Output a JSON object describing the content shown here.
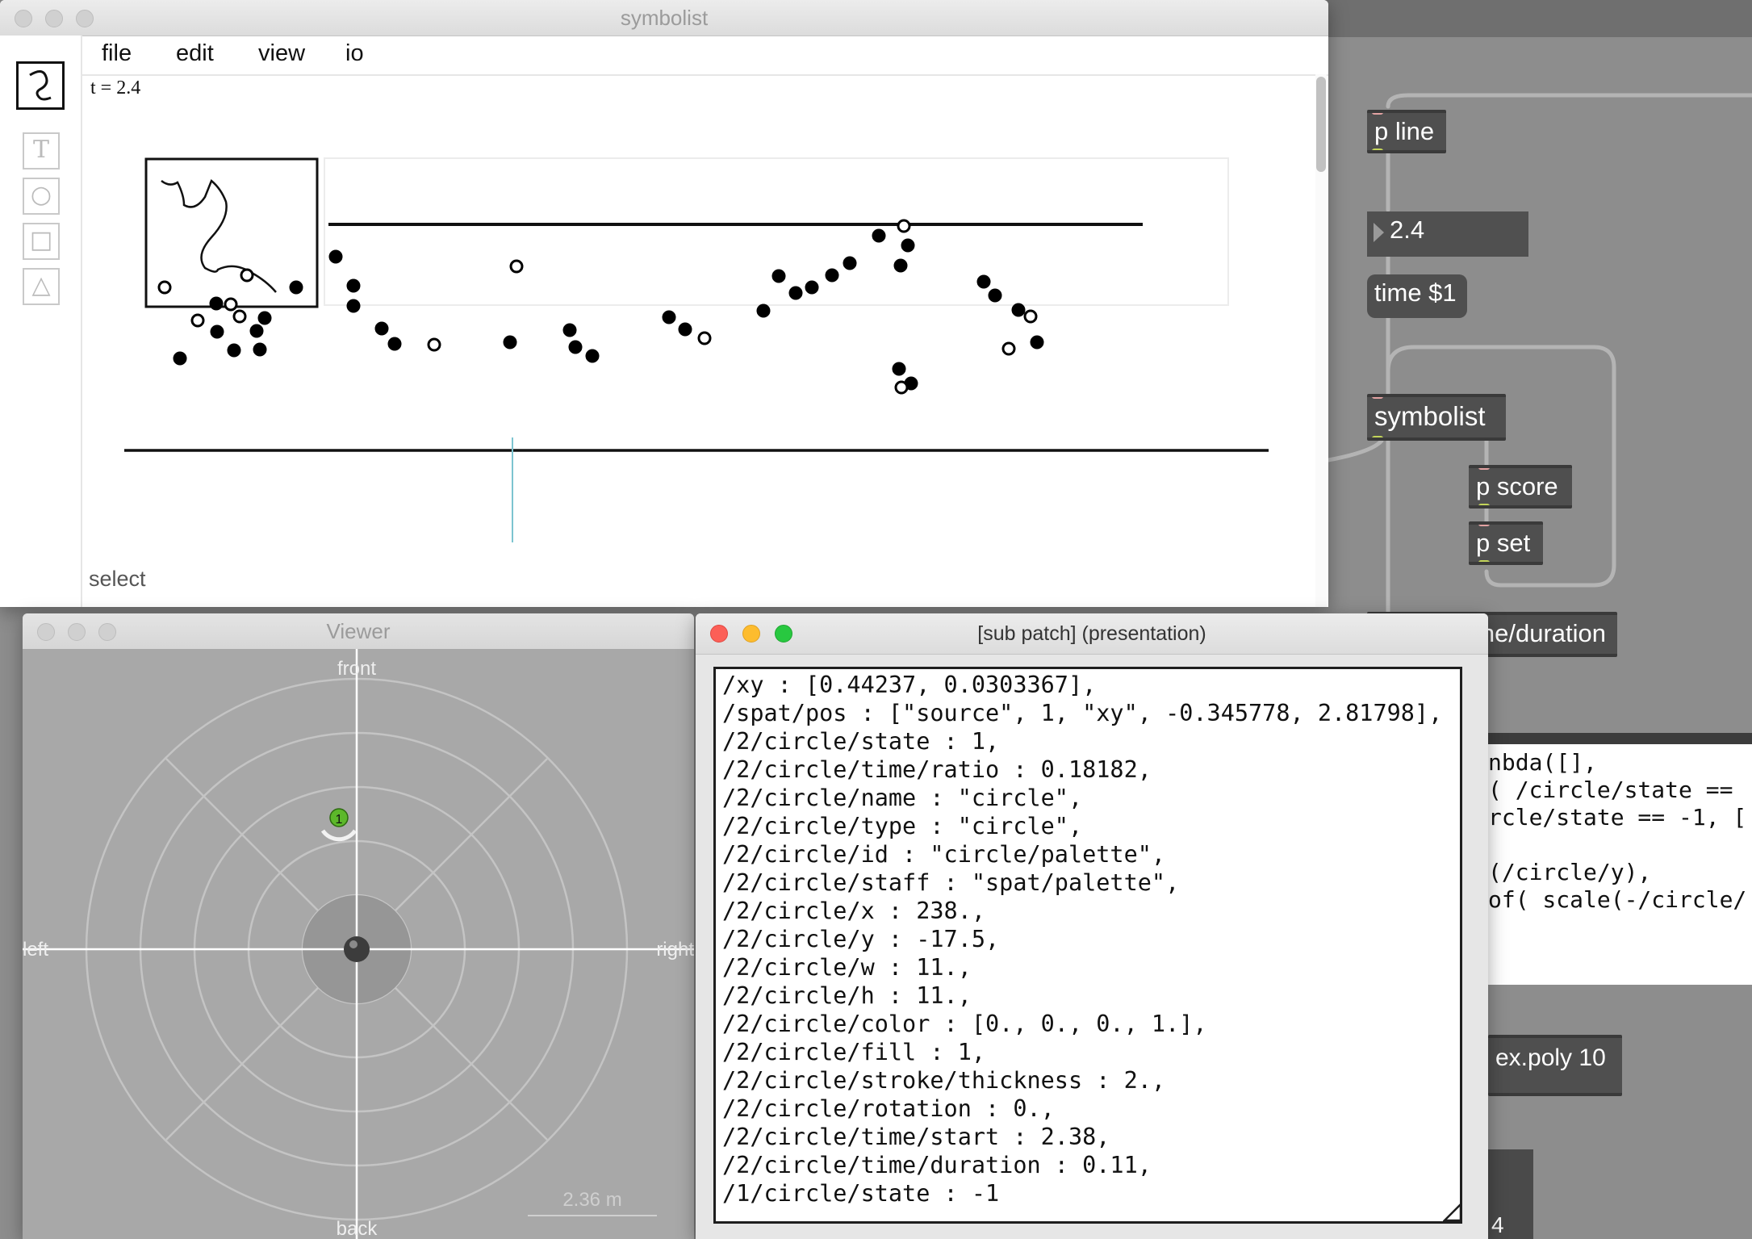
{
  "symbolist": {
    "title": "symbolist",
    "menu": [
      "file",
      "edit",
      "view",
      "io"
    ],
    "tools": [
      {
        "name": "text-tool",
        "glyph": "T"
      },
      {
        "name": "circle-tool",
        "glyph": "○"
      },
      {
        "name": "square-tool",
        "glyph": "□"
      },
      {
        "name": "triangle-tool",
        "glyph": "△"
      }
    ],
    "time_readout": "t = 2.4",
    "status": "select"
  },
  "viewer": {
    "title": "Viewer",
    "labels": {
      "front": "front",
      "back": "back",
      "left": "left",
      "right": "right"
    },
    "source_number": "1",
    "scale_label": "2.36 m"
  },
  "subpatch": {
    "title": "[sub patch] (presentation)",
    "lines": [
      "/xy : [0.44237, 0.0303367],",
      "/spat/pos : [\"source\", 1, \"xy\", -0.345778, 2.81798],",
      "/2/circle/state : 1,",
      "/2/circle/time/ratio : 0.18182,",
      "/2/circle/name : \"circle\",",
      "/2/circle/type : \"circle\",",
      "/2/circle/id : \"circle/palette\",",
      "/2/circle/staff : \"spat/palette\",",
      "/2/circle/x : 238.,",
      "/2/circle/y : -17.5,",
      "/2/circle/w : 11.,",
      "/2/circle/h : 11.,",
      "/2/circle/color : [0., 0., 0., 1.],",
      "/2/circle/fill : 1,",
      "/2/circle/stroke/thickness : 2.,",
      "/2/circle/rotation : 0.,",
      "/2/circle/time/start : 2.38,",
      "/2/circle/time/duration : 0.11,",
      "/1/circle/state : -1"
    ]
  },
  "max_patch": {
    "objects": {
      "p_line": "p line",
      "number": "2.4",
      "time_msg": "time $1",
      "symbolist": "symbolist",
      "p_score": "p score",
      "p_set": "p set",
      "duration": "ne/duration",
      "expoly": "ex.poly 10",
      "bottom_number": "4"
    },
    "code_lines": [
      "nbda([],",
      "( /circle/state ==",
      "rcle/state == -1, [",
      "",
      "(/circle/y),",
      "of( scale(-/circle/"
    ]
  }
}
